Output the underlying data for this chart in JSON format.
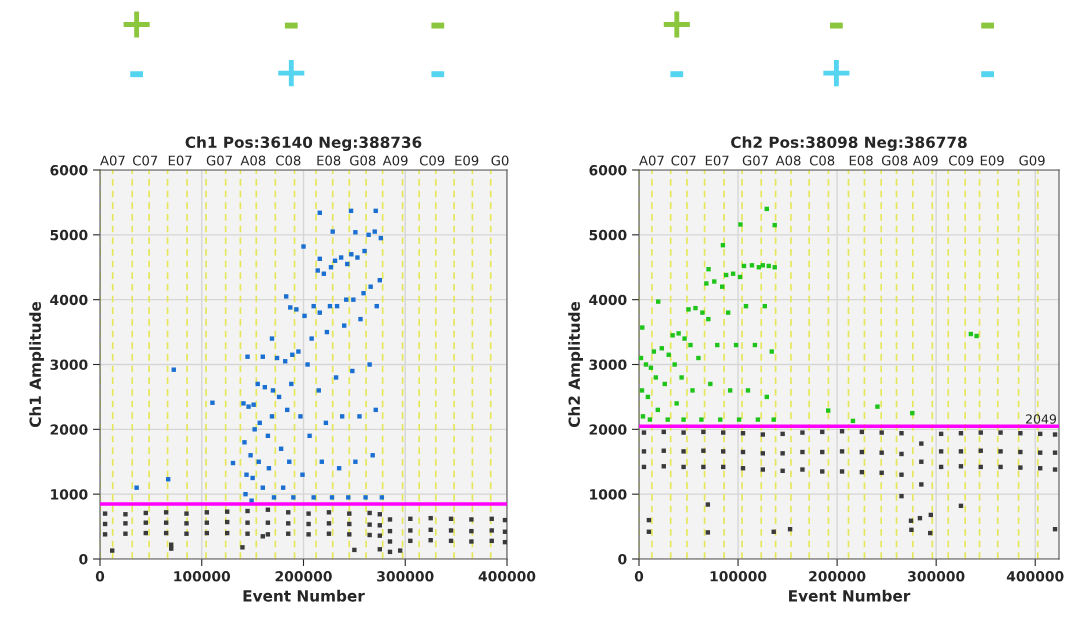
{
  "chart_data": [
    {
      "type": "scatter",
      "title": "Ch1 Pos:36140 Neg:388736",
      "xlabel": "Event Number",
      "ylabel": "Ch1 Amplitude",
      "annotations": [
        "+",
        "-",
        "-",
        "-",
        "+",
        "-"
      ],
      "xlim": [
        0,
        400000
      ],
      "xticks": [
        0,
        100000,
        200000,
        300000,
        400000
      ],
      "ylim": [
        0,
        6000
      ],
      "yticks": [
        0,
        1000,
        2000,
        3000,
        4000,
        5000,
        6000
      ],
      "grid": true,
      "marker": "square",
      "ref_lines": [
        {
          "axis": "x",
          "value": 0,
          "label": "A07",
          "color": "#e6e65a",
          "line_style": "dashed"
        },
        {
          "axis": "x",
          "value": 12500,
          "color": "#e6e65a",
          "line_style": "dashed"
        },
        {
          "axis": "x",
          "value": 31700,
          "label": "C07",
          "color": "#e6e65a",
          "line_style": "dashed"
        },
        {
          "axis": "x",
          "value": 48300,
          "color": "#e6e65a",
          "line_style": "dashed"
        },
        {
          "axis": "x",
          "value": 66400,
          "label": "E07",
          "color": "#e6e65a",
          "line_style": "dashed"
        },
        {
          "axis": "x",
          "value": 85600,
          "color": "#e6e65a",
          "line_style": "dashed"
        },
        {
          "axis": "x",
          "value": 104200,
          "label": "G07",
          "color": "#e6e65a",
          "line_style": "dashed"
        },
        {
          "axis": "x",
          "value": 123500,
          "color": "#e6e65a",
          "line_style": "dashed"
        },
        {
          "axis": "x",
          "value": 138000,
          "label": "A08",
          "color": "#e6e65a",
          "line_style": "dashed"
        },
        {
          "axis": "x",
          "value": 153600,
          "color": "#e6e65a",
          "line_style": "dashed"
        },
        {
          "axis": "x",
          "value": 172300,
          "label": "C08",
          "color": "#e6e65a",
          "line_style": "dashed"
        },
        {
          "axis": "x",
          "value": 191200,
          "color": "#e6e65a",
          "line_style": "dashed"
        },
        {
          "axis": "x",
          "value": 212400,
          "label": "E08",
          "color": "#e6e65a",
          "line_style": "dashed"
        },
        {
          "axis": "x",
          "value": 228700,
          "color": "#e6e65a",
          "line_style": "dashed"
        },
        {
          "axis": "x",
          "value": 245000,
          "label": "G08",
          "color": "#e6e65a",
          "line_style": "dashed"
        },
        {
          "axis": "x",
          "value": 261500,
          "color": "#e6e65a",
          "line_style": "dashed"
        },
        {
          "axis": "x",
          "value": 277800,
          "label": "A09",
          "color": "#e6e65a",
          "line_style": "dashed"
        },
        {
          "axis": "x",
          "value": 297400,
          "color": "#e6e65a",
          "line_style": "dashed"
        },
        {
          "axis": "x",
          "value": 313700,
          "label": "C09",
          "color": "#e6e65a",
          "line_style": "dashed"
        },
        {
          "axis": "x",
          "value": 330000,
          "color": "#e6e65a",
          "line_style": "dashed"
        },
        {
          "axis": "x",
          "value": 348000,
          "label": "E09",
          "color": "#e6e65a",
          "line_style": "dashed"
        },
        {
          "axis": "x",
          "value": 366000,
          "color": "#e6e65a",
          "line_style": "dashed"
        },
        {
          "axis": "x",
          "value": 384000,
          "label": "G0",
          "color": "#e6e65a",
          "line_style": "dashed"
        },
        {
          "axis": "y",
          "value": 850,
          "color": "#ff00ff",
          "line_style": "solid"
        }
      ],
      "series": [
        {
          "color": "#3a3a3a",
          "x": [
            5000,
            5000,
            5000,
            25000,
            25000,
            25000,
            45000,
            45000,
            45000,
            65000,
            65000,
            65000,
            85000,
            85000,
            85000,
            105000,
            105000,
            105000,
            125000,
            125000,
            125000,
            145000,
            145000,
            145000,
            165000,
            165000,
            165000,
            185000,
            185000,
            185000,
            205000,
            205000,
            205000,
            225000,
            225000,
            225000,
            245000,
            245000,
            245000,
            265000,
            265000,
            265000,
            275000,
            275000,
            275000,
            285000,
            285000,
            285000,
            305000,
            305000,
            305000,
            325000,
            325000,
            325000,
            345000,
            345000,
            345000,
            365000,
            365000,
            365000,
            385000,
            385000,
            385000,
            398000,
            398000,
            398000,
            12000,
            70000,
            70000,
            140000,
            160000,
            250000,
            275000,
            285000,
            295000
          ],
          "values": [
            700,
            540,
            380,
            690,
            550,
            390,
            710,
            560,
            400,
            720,
            560,
            400,
            700,
            550,
            390,
            720,
            560,
            400,
            730,
            570,
            400,
            740,
            560,
            390,
            760,
            560,
            380,
            720,
            550,
            390,
            700,
            540,
            380,
            720,
            550,
            390,
            700,
            540,
            380,
            710,
            530,
            370,
            690,
            520,
            360,
            610,
            430,
            270,
            620,
            440,
            280,
            630,
            450,
            290,
            620,
            440,
            280,
            610,
            430,
            270,
            620,
            440,
            280,
            600,
            420,
            260,
            130,
            160,
            220,
            180,
            350,
            140,
            150,
            110,
            130
          ]
        },
        {
          "color": "#1a6fd1",
          "x": [
            141000,
            146000,
            151000,
            142000,
            148000,
            152000,
            144000,
            150000,
            143000,
            149000,
            155000,
            162000,
            170000,
            157000,
            165000,
            169000,
            156000,
            166000,
            160000,
            171000,
            174000,
            182000,
            189000,
            176000,
            184000,
            188000,
            178000,
            186000,
            180000,
            190000,
            193000,
            201000,
            210000,
            195000,
            204000,
            208000,
            197000,
            206000,
            199000,
            210000,
            214000,
            220000,
            227000,
            216000,
            223000,
            226000,
            215000,
            222000,
            218000,
            228000,
            231000,
            237000,
            243000,
            233000,
            240000,
            242000,
            232000,
            238000,
            235000,
            244000,
            247000,
            253000,
            260000,
            249000,
            256000,
            259000,
            248000,
            255000,
            251000,
            261000,
            264000,
            270000,
            276000,
            266000,
            272000,
            275000,
            265000,
            271000,
            268000,
            277000,
            36000,
            67000,
            72500,
            110500,
            130700,
            145000,
            160000,
            169000,
            183000,
            200000,
            216000,
            228700,
            246700,
            251000,
            271000,
            216000,
            187000
          ],
          "values": [
            2400,
            2350,
            2380,
            1800,
            1600,
            2000,
            1300,
            1250,
            1000,
            900,
            2700,
            2650,
            2600,
            2100,
            1900,
            2200,
            1500,
            1400,
            1100,
            950,
            3100,
            3050,
            3150,
            2500,
            2300,
            2700,
            1700,
            1500,
            1100,
            950,
            3850,
            3750,
            3900,
            3200,
            3000,
            3400,
            2200,
            1900,
            1300,
            950,
            4450,
            4400,
            4500,
            3800,
            3500,
            3900,
            2600,
            2100,
            1500,
            950,
            4600,
            4650,
            4550,
            3900,
            3600,
            4000,
            2800,
            2200,
            1400,
            950,
            4700,
            4650,
            4750,
            4000,
            3700,
            4100,
            2900,
            2200,
            1500,
            950,
            5000,
            5050,
            4950,
            4200,
            3900,
            4300,
            3000,
            2300,
            1600,
            950,
            1100,
            1230,
            2920,
            2410,
            1480,
            3120,
            3120,
            3400,
            4050,
            4820,
            5340,
            5050,
            5370,
            5040,
            5370,
            4630,
            3880
          ]
        }
      ]
    },
    {
      "type": "scatter",
      "title": "Ch2 Pos:38098 Neg:386778",
      "xlabel": "Event Number",
      "ylabel": "Ch2 Amplitude",
      "annotations": [
        "+",
        "-",
        "-",
        "-",
        "+",
        "-"
      ],
      "xlim": [
        0,
        424000
      ],
      "xticks": [
        0,
        100000,
        200000,
        300000,
        400000
      ],
      "ylim": [
        0,
        6000
      ],
      "yticks": [
        0,
        1000,
        2000,
        3000,
        4000,
        5000,
        6000
      ],
      "grid": true,
      "marker": "square",
      "ref_lines": [
        {
          "axis": "x",
          "value": 0,
          "label": "A07",
          "color": "#e6e65a",
          "line_style": "dashed"
        },
        {
          "axis": "x",
          "value": 13000,
          "color": "#e6e65a",
          "line_style": "dashed"
        },
        {
          "axis": "x",
          "value": 32000,
          "label": "C07",
          "color": "#e6e65a",
          "line_style": "dashed"
        },
        {
          "axis": "x",
          "value": 48400,
          "color": "#e6e65a",
          "line_style": "dashed"
        },
        {
          "axis": "x",
          "value": 66200,
          "label": "E07",
          "color": "#e6e65a",
          "line_style": "dashed"
        },
        {
          "axis": "x",
          "value": 85900,
          "color": "#e6e65a",
          "line_style": "dashed"
        },
        {
          "axis": "x",
          "value": 104000,
          "label": "G07",
          "color": "#e6e65a",
          "line_style": "dashed"
        },
        {
          "axis": "x",
          "value": 123400,
          "color": "#e6e65a",
          "line_style": "dashed"
        },
        {
          "axis": "x",
          "value": 137900,
          "label": "A08",
          "color": "#e6e65a",
          "line_style": "dashed"
        },
        {
          "axis": "x",
          "value": 153400,
          "color": "#e6e65a",
          "line_style": "dashed"
        },
        {
          "axis": "x",
          "value": 171800,
          "label": "C08",
          "color": "#e6e65a",
          "line_style": "dashed"
        },
        {
          "axis": "x",
          "value": 191200,
          "color": "#e6e65a",
          "line_style": "dashed"
        },
        {
          "axis": "x",
          "value": 211500,
          "label": "E08",
          "color": "#e6e65a",
          "line_style": "dashed"
        },
        {
          "axis": "x",
          "value": 227600,
          "color": "#e6e65a",
          "line_style": "dashed"
        },
        {
          "axis": "x",
          "value": 244500,
          "label": "G08",
          "color": "#e6e65a",
          "line_style": "dashed"
        },
        {
          "axis": "x",
          "value": 260000,
          "color": "#e6e65a",
          "line_style": "dashed"
        },
        {
          "axis": "x",
          "value": 276400,
          "label": "A09",
          "color": "#e6e65a",
          "line_style": "dashed"
        },
        {
          "axis": "x",
          "value": 296100,
          "color": "#e6e65a",
          "line_style": "dashed"
        },
        {
          "axis": "x",
          "value": 312200,
          "label": "C09",
          "color": "#e6e65a",
          "line_style": "dashed"
        },
        {
          "axis": "x",
          "value": 329300,
          "color": "#e6e65a",
          "line_style": "dashed"
        },
        {
          "axis": "x",
          "value": 343800,
          "label": "E09",
          "color": "#e6e65a",
          "line_style": "dashed"
        },
        {
          "axis": "x",
          "value": 362200,
          "color": "#e6e65a",
          "line_style": "dashed"
        },
        {
          "axis": "x",
          "value": 383200,
          "label": "G09",
          "color": "#e6e65a",
          "line_style": "dashed"
        },
        {
          "axis": "x",
          "value": 402600,
          "color": "#e6e65a",
          "line_style": "dashed"
        },
        {
          "axis": "y",
          "value": 2049,
          "label": "2049",
          "color": "#ff00ff",
          "line_style": "solid"
        }
      ],
      "series": [
        {
          "color": "#3a3a3a",
          "x": [
            5000,
            5000,
            5000,
            25000,
            25000,
            25000,
            45000,
            45000,
            45000,
            65000,
            65000,
            65000,
            85000,
            85000,
            85000,
            105000,
            105000,
            105000,
            125000,
            125000,
            125000,
            145000,
            145000,
            145000,
            165000,
            165000,
            165000,
            185000,
            185000,
            185000,
            205000,
            205000,
            205000,
            225000,
            225000,
            225000,
            245000,
            245000,
            245000,
            265000,
            265000,
            265000,
            285000,
            285000,
            285000,
            305000,
            305000,
            305000,
            325000,
            325000,
            325000,
            345000,
            345000,
            345000,
            365000,
            365000,
            365000,
            385000,
            385000,
            385000,
            405000,
            405000,
            405000,
            420000,
            420000,
            420000,
            10000,
            10000,
            69500,
            69500,
            136000,
            152500,
            265000,
            274600,
            275000,
            283600,
            294000,
            294600,
            325000,
            420000
          ],
          "values": [
            1950,
            1660,
            1420,
            1960,
            1670,
            1430,
            1950,
            1660,
            1420,
            1960,
            1670,
            1420,
            1950,
            1660,
            1420,
            1940,
            1650,
            1400,
            1920,
            1630,
            1380,
            1930,
            1630,
            1360,
            1950,
            1650,
            1380,
            1960,
            1650,
            1350,
            1970,
            1660,
            1350,
            1960,
            1650,
            1340,
            1950,
            1640,
            1330,
            1940,
            1620,
            1300,
            1780,
            1500,
            1150,
            1930,
            1660,
            1420,
            1940,
            1660,
            1430,
            1950,
            1670,
            1420,
            1950,
            1660,
            1420,
            1940,
            1650,
            1410,
            1930,
            1640,
            1400,
            1920,
            1640,
            1380,
            600,
            420,
            840,
            410,
            420,
            460,
            970,
            590,
            450,
            630,
            400,
            680,
            820,
            460
          ]
        },
        {
          "color": "#1fc41a",
          "x": [
            2000,
            7000,
            12000,
            3000,
            9000,
            4000,
            11000,
            15000,
            23000,
            30000,
            17000,
            26000,
            19000,
            29000,
            34000,
            40000,
            46000,
            36000,
            43000,
            38000,
            45000,
            50000,
            57000,
            64000,
            52000,
            60000,
            54000,
            63000,
            68000,
            76000,
            84000,
            70000,
            79000,
            72000,
            82000,
            88000,
            95000,
            102000,
            90000,
            98000,
            92000,
            101000,
            106000,
            114000,
            121000,
            108000,
            117000,
            110000,
            120000,
            125000,
            131000,
            137000,
            127000,
            134000,
            129000,
            136000,
            102400,
            129000,
            137000,
            84700,
            70200,
            19400,
            3300,
            191000,
            216000,
            240700,
            275900,
            335000,
            340800
          ],
          "values": [
            3100,
            3000,
            2950,
            2600,
            2500,
            2200,
            2150,
            3200,
            3250,
            3150,
            2800,
            2700,
            2300,
            2150,
            3450,
            3480,
            3400,
            3000,
            2800,
            2400,
            2150,
            3850,
            3870,
            3800,
            3300,
            3100,
            2600,
            2150,
            4250,
            4280,
            4200,
            3700,
            3300,
            2700,
            2150,
            4380,
            4400,
            4350,
            3800,
            3300,
            2600,
            2150,
            4520,
            4530,
            4500,
            3900,
            3300,
            2600,
            2150,
            4530,
            4520,
            4500,
            3900,
            3200,
            2500,
            2150,
            5160,
            5400,
            5150,
            4840,
            4470,
            3970,
            3570,
            2290,
            2130,
            2350,
            2250,
            3470,
            3440
          ]
        }
      ]
    }
  ]
}
